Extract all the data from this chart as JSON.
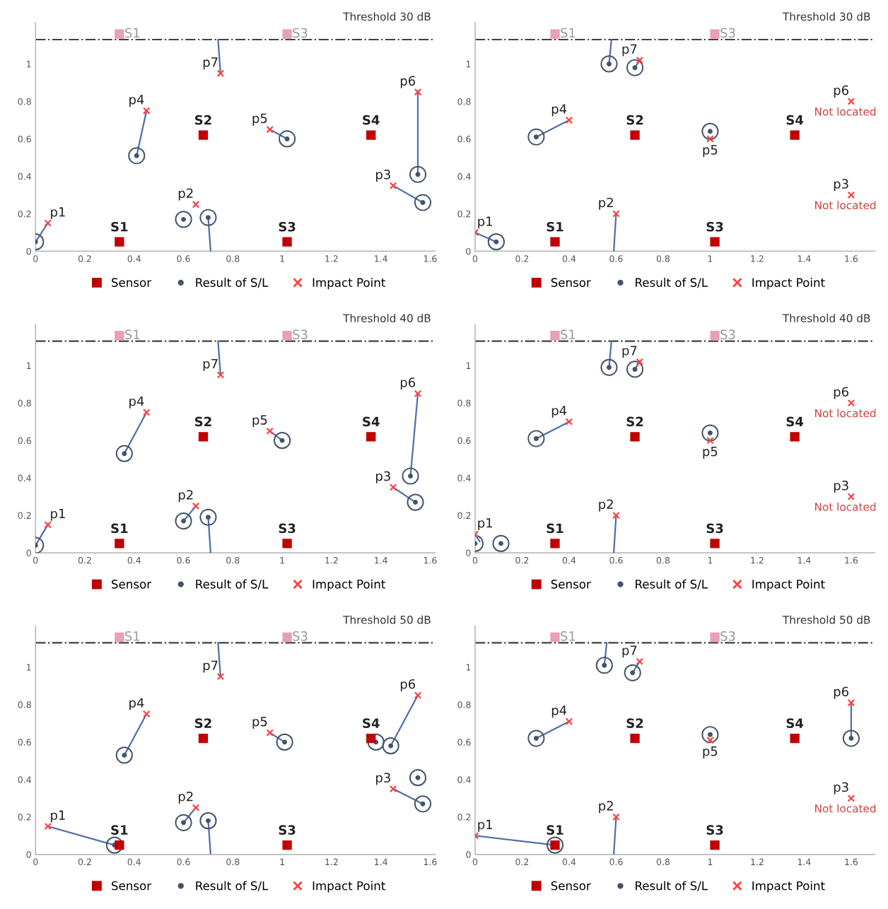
{
  "chart_data": [
    {
      "type": "scatter",
      "title": "Threshold 30 dB",
      "xlim": [
        0,
        1.62
      ],
      "ylim": [
        0,
        1.22
      ],
      "xticks": [
        0,
        0.2,
        0.4,
        0.6,
        0.8,
        1,
        1.2,
        1.4,
        1.6
      ],
      "yticks": [
        0,
        0.2,
        0.4,
        0.6,
        0.8,
        1
      ],
      "grid": false,
      "legend": "bottom",
      "ref_lines": [
        {
          "axis": "y",
          "value": 1.13,
          "color": "#404040",
          "line_style": "dashdot"
        }
      ],
      "series": [
        {
          "type": "line",
          "color": "#4f6fa8",
          "x": [
            0.05,
            0.0,
            null,
            0.7,
            0.71,
            null,
            1.45,
            1.57,
            null,
            0.45,
            0.41,
            null,
            0.95,
            1.02,
            null,
            1.55,
            1.55,
            null,
            0.75,
            0.74
          ],
          "values": [
            0.15,
            0.05,
            null,
            0.18,
            0,
            null,
            0.35,
            0.26,
            null,
            0.75,
            0.51,
            null,
            0.65,
            0.6,
            null,
            0.85,
            0.41,
            null,
            0.95,
            1.13
          ]
        },
        {
          "type": "scatter",
          "color": "#e8a0b4",
          "marker": "square",
          "x": [
            0.34,
            1.02
          ],
          "values": [
            1.16,
            1.16
          ]
        },
        {
          "name": "Sensor",
          "type": "scatter",
          "color": "#c00000",
          "marker": "square",
          "x": [
            0.34,
            0.68,
            1.02,
            1.36
          ],
          "values": [
            0.05,
            0.62,
            0.05,
            0.62
          ]
        },
        {
          "name": "Result of S/L",
          "type": "scatter",
          "color": "#44546a",
          "marker": "circle",
          "x": [
            0.0,
            0.6,
            0.7,
            1.57,
            0.41,
            1.02,
            1.55
          ],
          "values": [
            0.05,
            0.17,
            0.18,
            0.26,
            0.51,
            0.6,
            0.41
          ]
        },
        {
          "name": "Impact Point",
          "type": "scatter",
          "color": "#ff4040",
          "marker": "cross",
          "x": [
            0.05,
            0.65,
            1.45,
            0.45,
            0.95,
            1.55,
            0.75
          ],
          "values": [
            0.15,
            0.25,
            0.35,
            0.75,
            0.65,
            0.85,
            0.95
          ]
        }
      ],
      "annotations": [
        {
          "text": "S1",
          "x": 0.34,
          "y": 0.05
        },
        {
          "text": "S2",
          "x": 0.68,
          "y": 0.62
        },
        {
          "text": "S3",
          "x": 1.02,
          "y": 0.05
        },
        {
          "text": "S4",
          "x": 1.36,
          "y": 0.62
        },
        {
          "text": "p1",
          "x": 0.05,
          "y": 0.15
        },
        {
          "text": "p2",
          "x": 0.65,
          "y": 0.25
        },
        {
          "text": "p3",
          "x": 1.45,
          "y": 0.35
        },
        {
          "text": "p4",
          "x": 0.45,
          "y": 0.75
        },
        {
          "text": "p5",
          "x": 0.95,
          "y": 0.65
        },
        {
          "text": "p6",
          "x": 1.55,
          "y": 0.85
        },
        {
          "text": "p7",
          "x": 0.75,
          "y": 0.95
        },
        {
          "text": "S1",
          "x": 0.34,
          "y": 1.16
        },
        {
          "text": "S3",
          "x": 1.02,
          "y": 1.16
        }
      ]
    },
    {
      "type": "scatter",
      "title": "Threshold 30 dB",
      "xlim": [
        0,
        1.7
      ],
      "ylim": [
        0,
        1.22
      ],
      "xticks": [
        0,
        0.2,
        0.4,
        0.6,
        0.8,
        1,
        1.2,
        1.4,
        1.6
      ],
      "yticks": [
        0,
        0.2,
        0.4,
        0.6,
        0.8,
        1
      ],
      "grid": false,
      "legend": "bottom",
      "ref_lines": [
        {
          "axis": "y",
          "value": 1.13,
          "color": "#404040",
          "line_style": "dashdot"
        }
      ],
      "series": [
        {
          "type": "line",
          "color": "#4f6fa8",
          "x": [
            0,
            0.09,
            null,
            0.6,
            0.59,
            null,
            0.4,
            0.26,
            null,
            0.7,
            0.68,
            null,
            0.57,
            0.58
          ],
          "values": [
            0.1,
            0.05,
            null,
            0.2,
            0,
            null,
            0.7,
            0.61,
            null,
            1.02,
            0.98,
            null,
            1.0,
            1.13
          ]
        },
        {
          "type": "scatter",
          "color": "#e8a0b4",
          "marker": "square",
          "x": [
            0.34,
            1.02
          ],
          "values": [
            1.16,
            1.16
          ]
        },
        {
          "name": "Sensor",
          "type": "scatter",
          "color": "#c00000",
          "marker": "square",
          "x": [
            0.34,
            0.68,
            1.02,
            1.36
          ],
          "values": [
            0.05,
            0.62,
            0.05,
            0.62
          ]
        },
        {
          "name": "Result of S/L",
          "type": "scatter",
          "color": "#44546a",
          "marker": "circle",
          "x": [
            0.09,
            0.26,
            1.0,
            0.68,
            0.57
          ],
          "values": [
            0.05,
            0.61,
            0.64,
            0.98,
            1.0
          ]
        },
        {
          "name": "Impact Point",
          "type": "scatter",
          "color": "#ff4040",
          "marker": "cross",
          "x": [
            0,
            0.6,
            1.6,
            0.4,
            1.0,
            1.6,
            0.7
          ],
          "values": [
            0.1,
            0.2,
            0.3,
            0.7,
            0.6,
            0.8,
            1.02
          ]
        }
      ],
      "annotations": [
        {
          "text": "S1",
          "x": 0.34,
          "y": 0.05
        },
        {
          "text": "S2",
          "x": 0.68,
          "y": 0.62
        },
        {
          "text": "S3",
          "x": 1.02,
          "y": 0.05
        },
        {
          "text": "S4",
          "x": 1.36,
          "y": 0.62
        },
        {
          "text": "p1",
          "x": 0,
          "y": 0.1
        },
        {
          "text": "p2",
          "x": 0.6,
          "y": 0.2
        },
        {
          "text": "p3",
          "x": 1.6,
          "y": 0.3
        },
        {
          "text": "p4",
          "x": 0.4,
          "y": 0.7
        },
        {
          "text": "p5",
          "x": 1.0,
          "y": 0.6
        },
        {
          "text": "p6",
          "x": 1.6,
          "y": 0.8
        },
        {
          "text": "p7",
          "x": 0.7,
          "y": 1.02
        },
        {
          "text": "Not located",
          "x": 1.6,
          "y": 0.3
        },
        {
          "text": "Not located",
          "x": 1.6,
          "y": 0.8
        },
        {
          "text": "S1",
          "x": 0.34,
          "y": 1.16
        },
        {
          "text": "S3",
          "x": 1.02,
          "y": 1.16
        }
      ]
    },
    {
      "type": "scatter",
      "title": "Threshold 40 dB",
      "xlim": [
        0,
        1.62
      ],
      "ylim": [
        0,
        1.22
      ],
      "xticks": [
        0,
        0.2,
        0.4,
        0.6,
        0.8,
        1,
        1.2,
        1.4,
        1.6
      ],
      "yticks": [
        0,
        0.2,
        0.4,
        0.6,
        0.8,
        1
      ],
      "grid": false,
      "legend": "bottom",
      "ref_lines": [
        {
          "axis": "y",
          "value": 1.13,
          "color": "#404040",
          "line_style": "dashdot"
        }
      ],
      "series": [
        {
          "type": "line",
          "color": "#4f6fa8",
          "x": [
            0.05,
            0.0,
            null,
            0.65,
            0.6,
            null,
            0.7,
            0.71,
            null,
            1.45,
            1.54,
            null,
            0.45,
            0.36,
            null,
            0.95,
            1.0,
            null,
            1.55,
            1.52,
            null,
            0.75,
            0.74
          ],
          "values": [
            0.15,
            0.04,
            null,
            0.25,
            0.17,
            null,
            0.19,
            0,
            null,
            0.35,
            0.27,
            null,
            0.75,
            0.53,
            null,
            0.65,
            0.6,
            null,
            0.85,
            0.41,
            null,
            0.95,
            1.13
          ]
        },
        {
          "type": "scatter",
          "color": "#e8a0b4",
          "marker": "square",
          "x": [
            0.34,
            1.02
          ],
          "values": [
            1.16,
            1.16
          ]
        },
        {
          "name": "Sensor",
          "type": "scatter",
          "color": "#c00000",
          "marker": "square",
          "x": [
            0.34,
            0.68,
            1.02,
            1.36
          ],
          "values": [
            0.05,
            0.62,
            0.05,
            0.62
          ]
        },
        {
          "name": "Result of S/L",
          "type": "scatter",
          "color": "#44546a",
          "marker": "circle",
          "x": [
            0.0,
            0.6,
            0.7,
            1.54,
            0.36,
            1.0,
            1.52
          ],
          "values": [
            0.04,
            0.17,
            0.19,
            0.27,
            0.53,
            0.6,
            0.41
          ]
        },
        {
          "name": "Impact Point",
          "type": "scatter",
          "color": "#ff4040",
          "marker": "cross",
          "x": [
            0.05,
            0.65,
            1.45,
            0.45,
            0.95,
            1.55,
            0.75
          ],
          "values": [
            0.15,
            0.25,
            0.35,
            0.75,
            0.65,
            0.85,
            0.95
          ]
        }
      ],
      "annotations": [
        {
          "text": "S1",
          "x": 0.34,
          "y": 0.05
        },
        {
          "text": "S2",
          "x": 0.68,
          "y": 0.62
        },
        {
          "text": "S3",
          "x": 1.02,
          "y": 0.05
        },
        {
          "text": "S4",
          "x": 1.36,
          "y": 0.62
        },
        {
          "text": "p1",
          "x": 0.05,
          "y": 0.15
        },
        {
          "text": "p2",
          "x": 0.65,
          "y": 0.25
        },
        {
          "text": "p3",
          "x": 1.45,
          "y": 0.35
        },
        {
          "text": "p4",
          "x": 0.45,
          "y": 0.75
        },
        {
          "text": "p5",
          "x": 0.95,
          "y": 0.65
        },
        {
          "text": "p6",
          "x": 1.55,
          "y": 0.85
        },
        {
          "text": "p7",
          "x": 0.75,
          "y": 0.95
        },
        {
          "text": "S1",
          "x": 0.34,
          "y": 1.16
        },
        {
          "text": "S3",
          "x": 1.02,
          "y": 1.16
        }
      ]
    },
    {
      "type": "scatter",
      "title": "Threshold 40 dB",
      "xlim": [
        0,
        1.7
      ],
      "ylim": [
        0,
        1.22
      ],
      "xticks": [
        0,
        0.2,
        0.4,
        0.6,
        0.8,
        1,
        1.2,
        1.4,
        1.6
      ],
      "yticks": [
        0,
        0.2,
        0.4,
        0.6,
        0.8,
        1
      ],
      "grid": false,
      "legend": "bottom",
      "ref_lines": [
        {
          "axis": "y",
          "value": 1.13,
          "color": "#404040",
          "line_style": "dashdot"
        }
      ],
      "series": [
        {
          "type": "line",
          "color": "#4f6fa8",
          "x": [
            0,
            0.02,
            null,
            0.6,
            0.59,
            null,
            0.4,
            0.26,
            null,
            0.7,
            0.68,
            null,
            0.57,
            0.58
          ],
          "values": [
            0.1,
            0.06,
            null,
            0.2,
            0,
            null,
            0.7,
            0.61,
            null,
            1.02,
            0.98,
            null,
            0.99,
            1.13
          ]
        },
        {
          "type": "scatter",
          "color": "#e8a0b4",
          "marker": "square",
          "x": [
            0.34,
            1.02
          ],
          "values": [
            1.16,
            1.16
          ]
        },
        {
          "name": "Sensor",
          "type": "scatter",
          "color": "#c00000",
          "marker": "square",
          "x": [
            0.34,
            0.68,
            1.02,
            1.36
          ],
          "values": [
            0.05,
            0.62,
            0.05,
            0.62
          ]
        },
        {
          "name": "Result of S/L",
          "type": "scatter",
          "color": "#44546a",
          "marker": "circle",
          "x": [
            0.0,
            0.11,
            0.26,
            1.0,
            0.68,
            0.57
          ],
          "values": [
            0.05,
            0.05,
            0.61,
            0.64,
            0.98,
            0.99
          ]
        },
        {
          "name": "Impact Point",
          "type": "scatter",
          "color": "#ff4040",
          "marker": "cross",
          "x": [
            0,
            0.6,
            1.6,
            0.4,
            1.0,
            1.6,
            0.7
          ],
          "values": [
            0.1,
            0.2,
            0.3,
            0.7,
            0.6,
            0.8,
            1.02
          ]
        }
      ],
      "annotations": [
        {
          "text": "S1",
          "x": 0.34,
          "y": 0.05
        },
        {
          "text": "S2",
          "x": 0.68,
          "y": 0.62
        },
        {
          "text": "S3",
          "x": 1.02,
          "y": 0.05
        },
        {
          "text": "S4",
          "x": 1.36,
          "y": 0.62
        },
        {
          "text": "p1",
          "x": 0,
          "y": 0.1
        },
        {
          "text": "p2",
          "x": 0.6,
          "y": 0.2
        },
        {
          "text": "p3",
          "x": 1.6,
          "y": 0.3
        },
        {
          "text": "p4",
          "x": 0.4,
          "y": 0.7
        },
        {
          "text": "p5",
          "x": 1.0,
          "y": 0.6
        },
        {
          "text": "p6",
          "x": 1.6,
          "y": 0.8
        },
        {
          "text": "p7",
          "x": 0.7,
          "y": 1.02
        },
        {
          "text": "Not located",
          "x": 1.6,
          "y": 0.3
        },
        {
          "text": "Not located",
          "x": 1.6,
          "y": 0.8
        },
        {
          "text": "S1",
          "x": 0.34,
          "y": 1.16
        },
        {
          "text": "S3",
          "x": 1.02,
          "y": 1.16
        }
      ]
    },
    {
      "type": "scatter",
      "title": "Threshold 50 dB",
      "xlim": [
        0,
        1.62
      ],
      "ylim": [
        0,
        1.22
      ],
      "xticks": [
        0,
        0.2,
        0.4,
        0.6,
        0.8,
        1,
        1.2,
        1.4,
        1.6
      ],
      "yticks": [
        0,
        0.2,
        0.4,
        0.6,
        0.8,
        1
      ],
      "grid": false,
      "legend": "bottom",
      "ref_lines": [
        {
          "axis": "y",
          "value": 1.13,
          "color": "#404040",
          "line_style": "dashdot"
        }
      ],
      "series": [
        {
          "type": "line",
          "color": "#4f6fa8",
          "x": [
            0.05,
            0.32,
            null,
            0.65,
            0.6,
            null,
            0.7,
            0.71,
            null,
            1.45,
            1.57,
            null,
            0.45,
            0.36,
            null,
            0.95,
            1.01,
            null,
            1.55,
            1.44,
            null,
            0.75,
            0.74
          ],
          "values": [
            0.15,
            0.05,
            null,
            0.25,
            0.17,
            null,
            0.18,
            0,
            null,
            0.35,
            0.27,
            null,
            0.75,
            0.53,
            null,
            0.65,
            0.6,
            null,
            0.85,
            0.58,
            null,
            0.95,
            1.13
          ]
        },
        {
          "type": "scatter",
          "color": "#e8a0b4",
          "marker": "square",
          "x": [
            0.34,
            1.02
          ],
          "values": [
            1.16,
            1.16
          ]
        },
        {
          "name": "Sensor",
          "type": "scatter",
          "color": "#c00000",
          "marker": "square",
          "x": [
            0.34,
            0.68,
            1.02,
            1.36
          ],
          "values": [
            0.05,
            0.62,
            0.05,
            0.62
          ]
        },
        {
          "name": "Result of S/L",
          "type": "scatter",
          "color": "#44546a",
          "marker": "circle",
          "x": [
            0.32,
            0.6,
            0.7,
            1.57,
            0.36,
            1.01,
            1.38,
            1.44,
            1.55
          ],
          "values": [
            0.05,
            0.17,
            0.18,
            0.27,
            0.53,
            0.6,
            0.6,
            0.58,
            0.41
          ]
        },
        {
          "name": "Impact Point",
          "type": "scatter",
          "color": "#ff4040",
          "marker": "cross",
          "x": [
            0.05,
            0.65,
            1.45,
            0.45,
            0.95,
            1.55,
            0.75
          ],
          "values": [
            0.15,
            0.25,
            0.35,
            0.75,
            0.65,
            0.85,
            0.95
          ]
        }
      ],
      "annotations": [
        {
          "text": "S1",
          "x": 0.34,
          "y": 0.05
        },
        {
          "text": "S2",
          "x": 0.68,
          "y": 0.62
        },
        {
          "text": "S3",
          "x": 1.02,
          "y": 0.05
        },
        {
          "text": "S4",
          "x": 1.36,
          "y": 0.62
        },
        {
          "text": "p1",
          "x": 0.05,
          "y": 0.15
        },
        {
          "text": "p2",
          "x": 0.65,
          "y": 0.25
        },
        {
          "text": "p3",
          "x": 1.45,
          "y": 0.35
        },
        {
          "text": "p4",
          "x": 0.45,
          "y": 0.75
        },
        {
          "text": "p5",
          "x": 0.95,
          "y": 0.65
        },
        {
          "text": "p6",
          "x": 1.55,
          "y": 0.85
        },
        {
          "text": "p7",
          "x": 0.75,
          "y": 0.95
        },
        {
          "text": "S1",
          "x": 0.34,
          "y": 1.16
        },
        {
          "text": "S3",
          "x": 1.02,
          "y": 1.16
        }
      ]
    },
    {
      "type": "scatter",
      "title": "Threshold 50 dB",
      "xlim": [
        0,
        1.7
      ],
      "ylim": [
        0,
        1.22
      ],
      "xticks": [
        0,
        0.2,
        0.4,
        0.6,
        0.8,
        1,
        1.2,
        1.4,
        1.6
      ],
      "yticks": [
        0,
        0.2,
        0.4,
        0.6,
        0.8,
        1
      ],
      "grid": false,
      "legend": "bottom",
      "ref_lines": [
        {
          "axis": "y",
          "value": 1.13,
          "color": "#404040",
          "line_style": "dashdot"
        }
      ],
      "series": [
        {
          "type": "line",
          "color": "#4f6fa8",
          "x": [
            0,
            0.34,
            null,
            0.6,
            0.59,
            null,
            0.4,
            0.26,
            null,
            1.6,
            1.6,
            null,
            0.7,
            0.67,
            null,
            0.55,
            0.56
          ],
          "values": [
            0.1,
            0.05,
            null,
            0.2,
            0,
            null,
            0.71,
            0.62,
            null,
            0.81,
            0.62,
            null,
            1.03,
            0.97,
            null,
            1.01,
            1.13
          ]
        },
        {
          "type": "scatter",
          "color": "#e8a0b4",
          "marker": "square",
          "x": [
            0.34,
            1.02
          ],
          "values": [
            1.16,
            1.16
          ]
        },
        {
          "name": "Sensor",
          "type": "scatter",
          "color": "#c00000",
          "marker": "square",
          "x": [
            0.34,
            0.68,
            1.02,
            1.36
          ],
          "values": [
            0.05,
            0.62,
            0.05,
            0.62
          ]
        },
        {
          "name": "Result of S/L",
          "type": "scatter",
          "color": "#44546a",
          "marker": "circle",
          "x": [
            0.34,
            0.26,
            1.0,
            1.6,
            0.67,
            0.55
          ],
          "values": [
            0.05,
            0.62,
            0.64,
            0.62,
            0.97,
            1.01
          ]
        },
        {
          "name": "Impact Point",
          "type": "scatter",
          "color": "#ff4040",
          "marker": "cross",
          "x": [
            0,
            0.6,
            1.6,
            0.4,
            1.0,
            1.6,
            0.7
          ],
          "values": [
            0.1,
            0.2,
            0.3,
            0.71,
            0.61,
            0.81,
            1.03
          ]
        }
      ],
      "annotations": [
        {
          "text": "S1",
          "x": 0.34,
          "y": 0.05
        },
        {
          "text": "S2",
          "x": 0.68,
          "y": 0.62
        },
        {
          "text": "S3",
          "x": 1.02,
          "y": 0.05
        },
        {
          "text": "S4",
          "x": 1.36,
          "y": 0.62
        },
        {
          "text": "p1",
          "x": 0,
          "y": 0.1
        },
        {
          "text": "p2",
          "x": 0.6,
          "y": 0.2
        },
        {
          "text": "p3",
          "x": 1.6,
          "y": 0.3
        },
        {
          "text": "p4",
          "x": 0.4,
          "y": 0.71
        },
        {
          "text": "p5",
          "x": 1.0,
          "y": 0.61
        },
        {
          "text": "p6",
          "x": 1.6,
          "y": 0.81
        },
        {
          "text": "p7",
          "x": 0.7,
          "y": 1.03
        },
        {
          "text": "Not located",
          "x": 1.6,
          "y": 0.3
        },
        {
          "text": "S1",
          "x": 0.34,
          "y": 1.16
        },
        {
          "text": "S3",
          "x": 1.02,
          "y": 1.16
        }
      ]
    }
  ]
}
